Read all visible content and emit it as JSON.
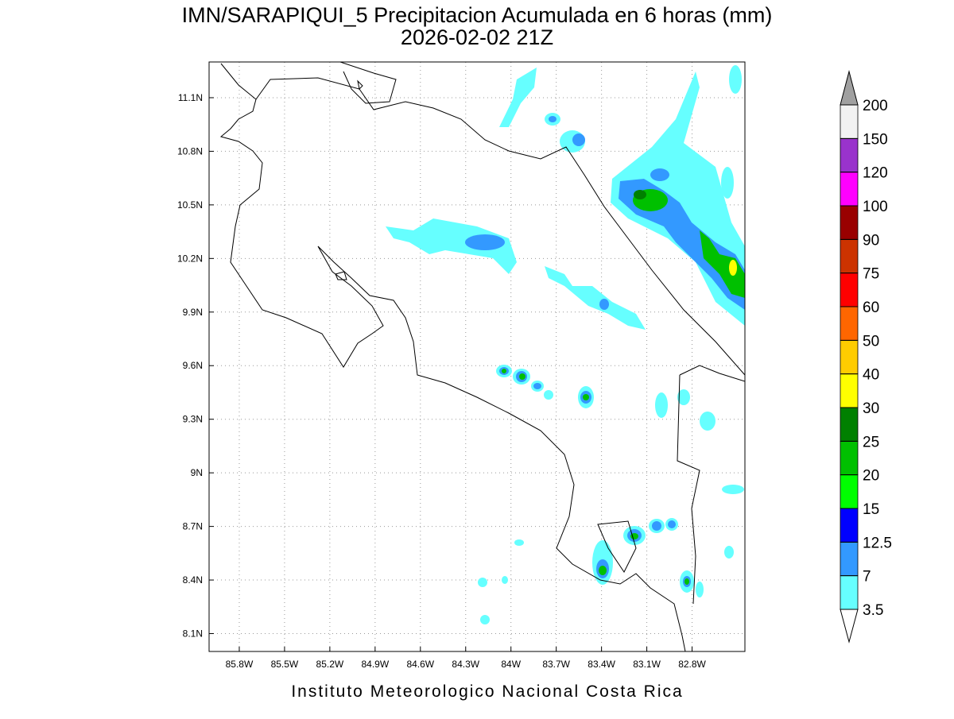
{
  "title": "IMN/SARAPIQUI_5 Precipitacion Acumulada en 6 horas (mm)",
  "subtitle": "2026-02-02 21Z",
  "footer": "Instituto Meteorologico Nacional Costa Rica",
  "map": {
    "lonlim": [
      -86.0,
      -82.45
    ],
    "latlim": [
      8.0,
      11.3
    ],
    "grid": true,
    "lon_ticks": [
      {
        "value": -85.8,
        "label": "85.8W"
      },
      {
        "value": -85.5,
        "label": "85.5W"
      },
      {
        "value": -85.2,
        "label": "85.2W"
      },
      {
        "value": -84.9,
        "label": "84.9W"
      },
      {
        "value": -84.6,
        "label": "84.6W"
      },
      {
        "value": -84.3,
        "label": "84.3W"
      },
      {
        "value": -84.0,
        "label": "84W"
      },
      {
        "value": -83.7,
        "label": "83.7W"
      },
      {
        "value": -83.4,
        "label": "83.4W"
      },
      {
        "value": -83.1,
        "label": "83.1W"
      },
      {
        "value": -82.8,
        "label": "82.8W"
      }
    ],
    "lat_ticks": [
      {
        "value": 8.1,
        "label": "8.1N"
      },
      {
        "value": 8.4,
        "label": "8.4N"
      },
      {
        "value": 8.7,
        "label": "8.7N"
      },
      {
        "value": 9.0,
        "label": "9N"
      },
      {
        "value": 9.3,
        "label": "9.3N"
      },
      {
        "value": 9.6,
        "label": "9.6N"
      },
      {
        "value": 9.9,
        "label": "9.9N"
      },
      {
        "value": 10.2,
        "label": "10.2N"
      },
      {
        "value": 10.5,
        "label": "10.5N"
      },
      {
        "value": 10.8,
        "label": "10.8N"
      },
      {
        "value": 11.1,
        "label": "11.1N"
      }
    ]
  },
  "colorbar": {
    "levels": [
      3.5,
      7,
      12.5,
      15,
      20,
      25,
      30,
      40,
      50,
      60,
      75,
      90,
      100,
      120,
      150,
      200
    ],
    "colors": [
      "#66ffff",
      "#3399ff",
      "#0000ff",
      "#00ff00",
      "#00c000",
      "#008000",
      "#ffff00",
      "#ffcc00",
      "#ff6600",
      "#ff0000",
      "#cc3300",
      "#990000",
      "#ff00ff",
      "#9933cc",
      "#f2f2f2"
    ],
    "under_color": "#ffffff",
    "over_color": "#a0a0a0"
  }
}
